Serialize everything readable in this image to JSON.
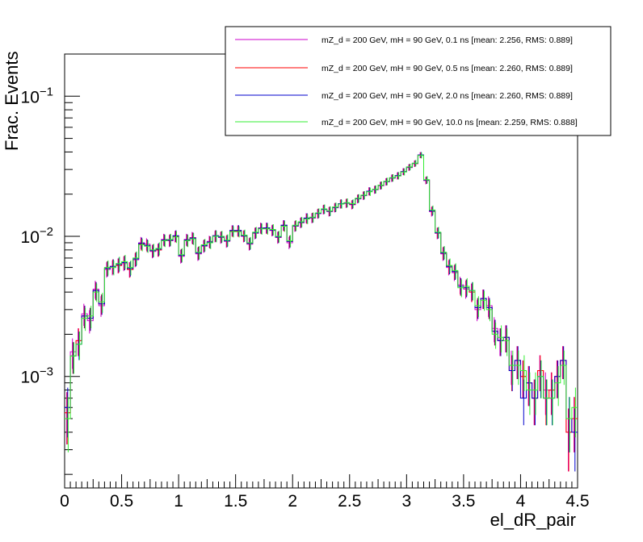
{
  "chart_data": {
    "type": "line",
    "xlabel": "el_dR_pair",
    "ylabel": "Frac. Events",
    "xlim": [
      0,
      4.5
    ],
    "ylim": [
      0.00016,
      0.2
    ],
    "yscale": "log",
    "x_ticks": [
      "0",
      "0.5",
      "1",
      "1.5",
      "2",
      "2.5",
      "3",
      "3.5",
      "4",
      "4.5"
    ],
    "y_ticks": [
      {
        "base": "10",
        "exp": "−3",
        "value": 0.001
      },
      {
        "base": "10",
        "exp": "−2",
        "value": 0.01
      },
      {
        "base": "10",
        "exp": "−1",
        "value": 0.1
      }
    ],
    "legend_position": "top-right",
    "bin_width": 0.05,
    "x": [
      0.025,
      0.075,
      0.125,
      0.175,
      0.225,
      0.275,
      0.325,
      0.375,
      0.425,
      0.475,
      0.525,
      0.575,
      0.625,
      0.675,
      0.725,
      0.775,
      0.825,
      0.875,
      0.925,
      0.975,
      1.025,
      1.075,
      1.125,
      1.175,
      1.225,
      1.275,
      1.325,
      1.375,
      1.425,
      1.475,
      1.525,
      1.575,
      1.625,
      1.675,
      1.725,
      1.775,
      1.825,
      1.875,
      1.925,
      1.975,
      2.025,
      2.075,
      2.125,
      2.175,
      2.225,
      2.275,
      2.325,
      2.375,
      2.425,
      2.475,
      2.525,
      2.575,
      2.625,
      2.675,
      2.725,
      2.775,
      2.825,
      2.875,
      2.925,
      2.975,
      3.025,
      3.075,
      3.125,
      3.175,
      3.225,
      3.275,
      3.325,
      3.375,
      3.425,
      3.475,
      3.525,
      3.575,
      3.625,
      3.675,
      3.725,
      3.775,
      3.825,
      3.875,
      3.925,
      3.975,
      4.025,
      4.075,
      4.125,
      4.175,
      4.225,
      4.275,
      4.325,
      4.375,
      4.425,
      4.475
    ],
    "series": [
      {
        "name": "mZ_d = 200 GeV, mH = 90 GeV, 0.1 ns [mean: 2.256, RMS: 0.889]",
        "color": "#cc00cc",
        "values": [
          0.00055,
          0.0015,
          0.0018,
          0.0028,
          0.0025,
          0.0042,
          0.0032,
          0.0058,
          0.006,
          0.0062,
          0.0064,
          0.0058,
          0.0068,
          0.009,
          0.0088,
          0.0078,
          0.008,
          0.0095,
          0.0093,
          0.01,
          0.0072,
          0.0095,
          0.0098,
          0.0075,
          0.0085,
          0.0092,
          0.01,
          0.0098,
          0.0092,
          0.011,
          0.011,
          0.01,
          0.0088,
          0.0105,
          0.0115,
          0.0115,
          0.011,
          0.0098,
          0.012,
          0.009,
          0.0118,
          0.0125,
          0.0135,
          0.0135,
          0.0145,
          0.0155,
          0.015,
          0.016,
          0.017,
          0.0172,
          0.0168,
          0.0185,
          0.0195,
          0.021,
          0.0215,
          0.023,
          0.0245,
          0.026,
          0.027,
          0.029,
          0.031,
          0.033,
          0.038,
          0.025,
          0.015,
          0.0105,
          0.0075,
          0.006,
          0.0055,
          0.0045,
          0.0042,
          0.004,
          0.003,
          0.0036,
          0.0032,
          0.0022,
          0.0018,
          0.0019,
          0.0012,
          0.0013,
          0.001,
          0.0009,
          0.0007,
          0.0011,
          0.0008,
          0.0008,
          0.001,
          0.0013,
          0.0004,
          0.0005
        ]
      },
      {
        "name": "mZ_d = 200 GeV, mH = 90 GeV, 0.5 ns [mean: 2.260, RMS: 0.889]",
        "color": "#ff0000",
        "values": [
          0.00055,
          0.0014,
          0.0018,
          0.0027,
          0.0026,
          0.0041,
          0.0033,
          0.0059,
          0.0061,
          0.0062,
          0.0065,
          0.0058,
          0.0069,
          0.0088,
          0.0086,
          0.0079,
          0.008,
          0.0094,
          0.0094,
          0.01,
          0.0073,
          0.0094,
          0.0097,
          0.0076,
          0.0086,
          0.0091,
          0.0101,
          0.0099,
          0.0093,
          0.0109,
          0.0109,
          0.0101,
          0.0089,
          0.0106,
          0.0114,
          0.0114,
          0.0111,
          0.0099,
          0.0119,
          0.0092,
          0.0119,
          0.0126,
          0.0134,
          0.0136,
          0.0146,
          0.0156,
          0.0151,
          0.0161,
          0.0171,
          0.0173,
          0.0169,
          0.0186,
          0.0196,
          0.0209,
          0.0216,
          0.0231,
          0.0246,
          0.0261,
          0.0271,
          0.0289,
          0.0311,
          0.0331,
          0.038,
          0.0252,
          0.0152,
          0.0106,
          0.0076,
          0.0061,
          0.0056,
          0.0044,
          0.0043,
          0.004,
          0.0031,
          0.0036,
          0.0031,
          0.0021,
          0.0018,
          0.0019,
          0.0011,
          0.0013,
          0.001,
          0.0009,
          0.0007,
          0.0011,
          0.0007,
          0.0008,
          0.001,
          0.0013,
          0.0004,
          0.0005
        ]
      },
      {
        "name": "mZ_d = 200 GeV, mH = 90 GeV, 2.0 ns [mean: 2.260, RMS: 0.889]",
        "color": "#0000cc",
        "values": [
          0.0006,
          0.0014,
          0.0017,
          0.0027,
          0.0026,
          0.0041,
          0.0033,
          0.0059,
          0.0061,
          0.0063,
          0.0065,
          0.0059,
          0.0069,
          0.0089,
          0.0086,
          0.0079,
          0.0081,
          0.0094,
          0.0094,
          0.0101,
          0.0073,
          0.0094,
          0.0097,
          0.0076,
          0.0086,
          0.0091,
          0.0101,
          0.0099,
          0.0093,
          0.011,
          0.011,
          0.0101,
          0.0089,
          0.0106,
          0.0114,
          0.0115,
          0.0111,
          0.0099,
          0.012,
          0.0092,
          0.0119,
          0.0126,
          0.0135,
          0.0136,
          0.0146,
          0.0156,
          0.0151,
          0.0161,
          0.0171,
          0.0173,
          0.017,
          0.0186,
          0.0196,
          0.021,
          0.0216,
          0.0231,
          0.0246,
          0.0261,
          0.0272,
          0.029,
          0.0312,
          0.0332,
          0.0381,
          0.0252,
          0.0152,
          0.0106,
          0.0076,
          0.0061,
          0.0056,
          0.0044,
          0.0043,
          0.0041,
          0.0031,
          0.0036,
          0.0031,
          0.0021,
          0.0018,
          0.0019,
          0.0011,
          0.0013,
          0.0007,
          0.0009,
          0.0007,
          0.001,
          0.0007,
          0.0007,
          0.001,
          0.0013,
          0.0005,
          0.0004
        ]
      },
      {
        "name": "mZ_d = 200 GeV, mH = 90 GeV, 10.0 ns [mean: 2.259, RMS: 0.888]",
        "color": "#33ee33",
        "values": [
          0.0005,
          0.0014,
          0.0017,
          0.0026,
          0.0027,
          0.004,
          0.0034,
          0.006,
          0.006,
          0.0064,
          0.0066,
          0.006,
          0.007,
          0.0087,
          0.0085,
          0.008,
          0.0082,
          0.0093,
          0.0095,
          0.0099,
          0.0074,
          0.0093,
          0.0096,
          0.0077,
          0.0087,
          0.009,
          0.01,
          0.01,
          0.0094,
          0.0108,
          0.0108,
          0.0102,
          0.009,
          0.0107,
          0.0113,
          0.0113,
          0.0112,
          0.01,
          0.0118,
          0.0093,
          0.012,
          0.0127,
          0.0133,
          0.0137,
          0.0147,
          0.0157,
          0.0152,
          0.0162,
          0.017,
          0.0174,
          0.0171,
          0.0187,
          0.0197,
          0.0208,
          0.0217,
          0.0232,
          0.0247,
          0.0262,
          0.027,
          0.0288,
          0.0313,
          0.0333,
          0.0378,
          0.0254,
          0.0154,
          0.0107,
          0.0077,
          0.0062,
          0.0057,
          0.0043,
          0.0044,
          0.0041,
          0.0032,
          0.0035,
          0.003,
          0.002,
          0.0019,
          0.0018,
          0.0012,
          0.0012,
          0.0011,
          0.0008,
          0.0008,
          0.001,
          0.0007,
          0.0007,
          0.0009,
          0.0012,
          0.0005,
          0.0006
        ]
      }
    ]
  }
}
